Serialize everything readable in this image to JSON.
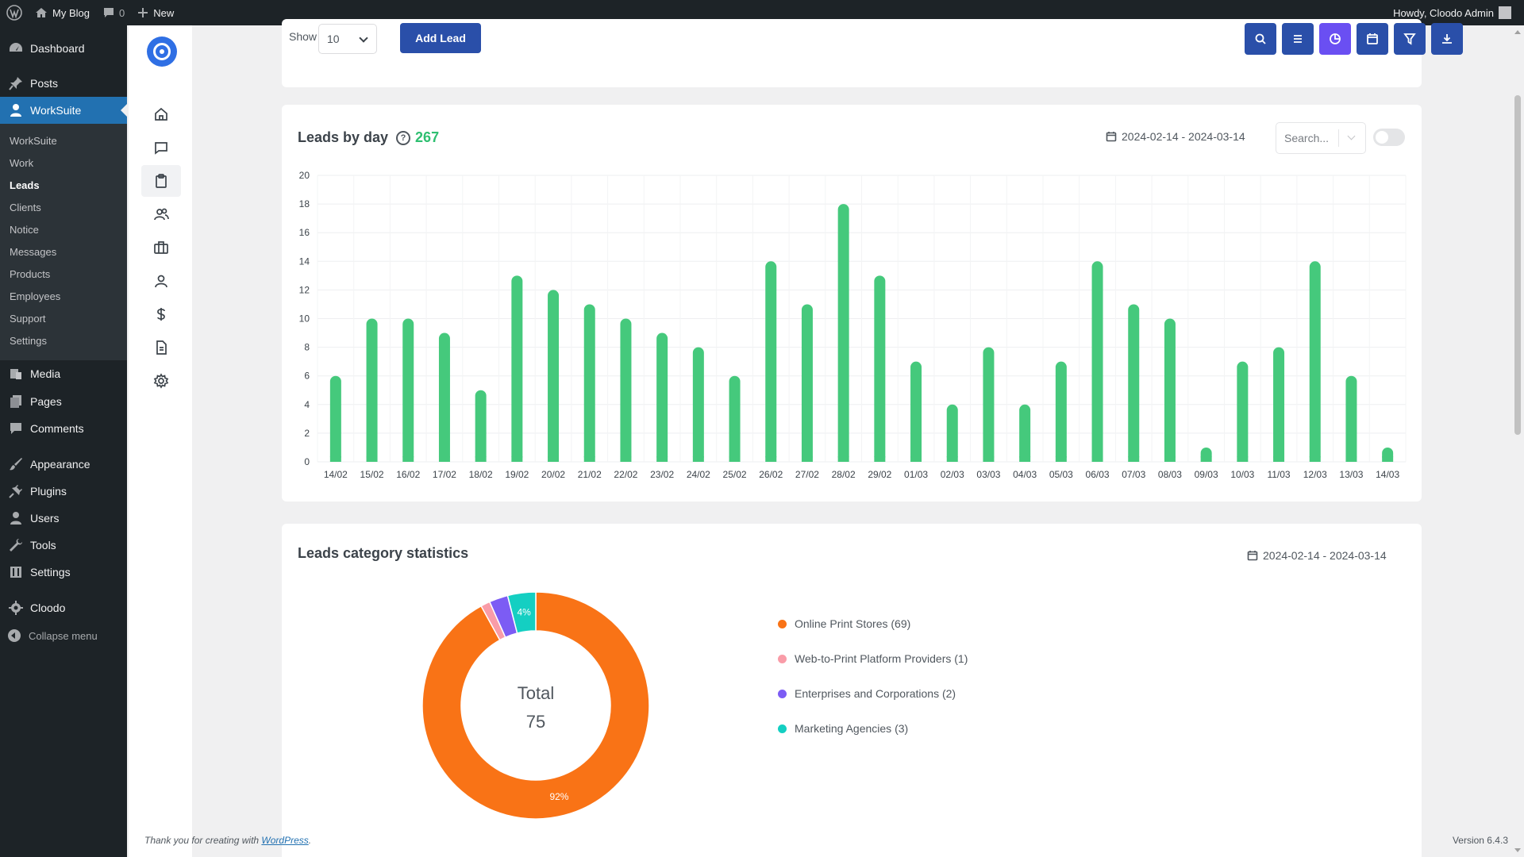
{
  "adminbar": {
    "site_name": "My Blog",
    "comments_count": "0",
    "new_label": "New",
    "greeting": "Howdy, Cloodo Admin"
  },
  "wpmenu": {
    "items": [
      {
        "label": "Dashboard",
        "icon": "dashboard-icon"
      },
      {
        "label": "Posts",
        "icon": "pin-icon"
      },
      {
        "label": "WorkSuite",
        "icon": "user-icon"
      },
      {
        "label": "Media",
        "icon": "media-icon"
      },
      {
        "label": "Pages",
        "icon": "pages-icon"
      },
      {
        "label": "Comments",
        "icon": "comment-icon"
      },
      {
        "label": "Appearance",
        "icon": "brush-icon"
      },
      {
        "label": "Plugins",
        "icon": "plug-icon"
      },
      {
        "label": "Users",
        "icon": "users-icon"
      },
      {
        "label": "Tools",
        "icon": "wrench-icon"
      },
      {
        "label": "Settings",
        "icon": "settings-icon"
      },
      {
        "label": "Cloodo",
        "icon": "gear-icon"
      }
    ],
    "submenu": [
      "WorkSuite",
      "Work",
      "Leads",
      "Clients",
      "Notice",
      "Messages",
      "Products",
      "Employees",
      "Support",
      "Settings"
    ],
    "collapse_label": "Collapse menu"
  },
  "rail": {
    "icons": [
      "home-icon",
      "chat-icon",
      "clipboard-icon",
      "people-icon",
      "briefcase-icon",
      "person-icon",
      "dollar-icon",
      "document-icon",
      "settings-icon"
    ]
  },
  "toolbar": {
    "show_label": "Show",
    "show_value": "10",
    "add_lead_label": "Add Lead",
    "buttons": [
      "search-icon",
      "list-icon",
      "pie-chart-icon",
      "calendar-icon",
      "filter-icon",
      "download-icon"
    ]
  },
  "leads_by_day": {
    "title": "Leads by day",
    "total": "267",
    "date_range": "2024-02-14 - 2024-03-14",
    "search_placeholder": "Search..."
  },
  "category_stats": {
    "title": "Leads category statistics",
    "date_range": "2024-02-14 - 2024-03-14",
    "center_label": "Total",
    "center_value": "75",
    "legend": [
      "Online Print Stores (69)",
      "Web-to-Print Platform Providers (1)",
      "Enterprises and Corporations (2)",
      "Marketing Agencies (3)"
    ]
  },
  "footer": {
    "thanks_prefix": "Thank you for creating with ",
    "thanks_link": "WordPress",
    "thanks_suffix": ".",
    "version": "Version 6.4.3"
  },
  "colors": {
    "bar": "#45c97c",
    "accent": "#2a4fa9",
    "purple": "#6a4ff2",
    "wp_blue": "#2271b1"
  },
  "chart_data": [
    {
      "type": "bar",
      "categories": [
        "14/02",
        "15/02",
        "16/02",
        "17/02",
        "18/02",
        "19/02",
        "20/02",
        "21/02",
        "22/02",
        "23/02",
        "24/02",
        "25/02",
        "26/02",
        "27/02",
        "28/02",
        "29/02",
        "01/03",
        "02/03",
        "03/03",
        "04/03",
        "05/03",
        "06/03",
        "07/03",
        "08/03",
        "09/03",
        "10/03",
        "11/03",
        "12/03",
        "13/03",
        "14/03"
      ],
      "values": [
        6,
        10,
        10,
        9,
        5,
        13,
        12,
        11,
        10,
        9,
        8,
        6,
        14,
        11,
        18,
        13,
        7,
        4,
        8,
        4,
        7,
        14,
        11,
        10,
        1,
        7,
        8,
        14,
        6,
        1
      ],
      "ylim": [
        0,
        20
      ],
      "yticks": [
        0,
        2,
        4,
        6,
        8,
        10,
        12,
        14,
        16,
        18,
        20
      ],
      "grid": true
    },
    {
      "type": "pie",
      "labels": [
        "Online Print Stores",
        "Web-to-Print Platform Providers",
        "Enterprises and Corporations",
        "Marketing Agencies"
      ],
      "values": [
        69,
        1,
        2,
        3
      ],
      "colors": [
        "#f97316",
        "#f99ca8",
        "#7c5cf4",
        "#14cfc2"
      ],
      "slice_labels": [
        "92%",
        "",
        "",
        "4%"
      ],
      "donut": true
    }
  ]
}
